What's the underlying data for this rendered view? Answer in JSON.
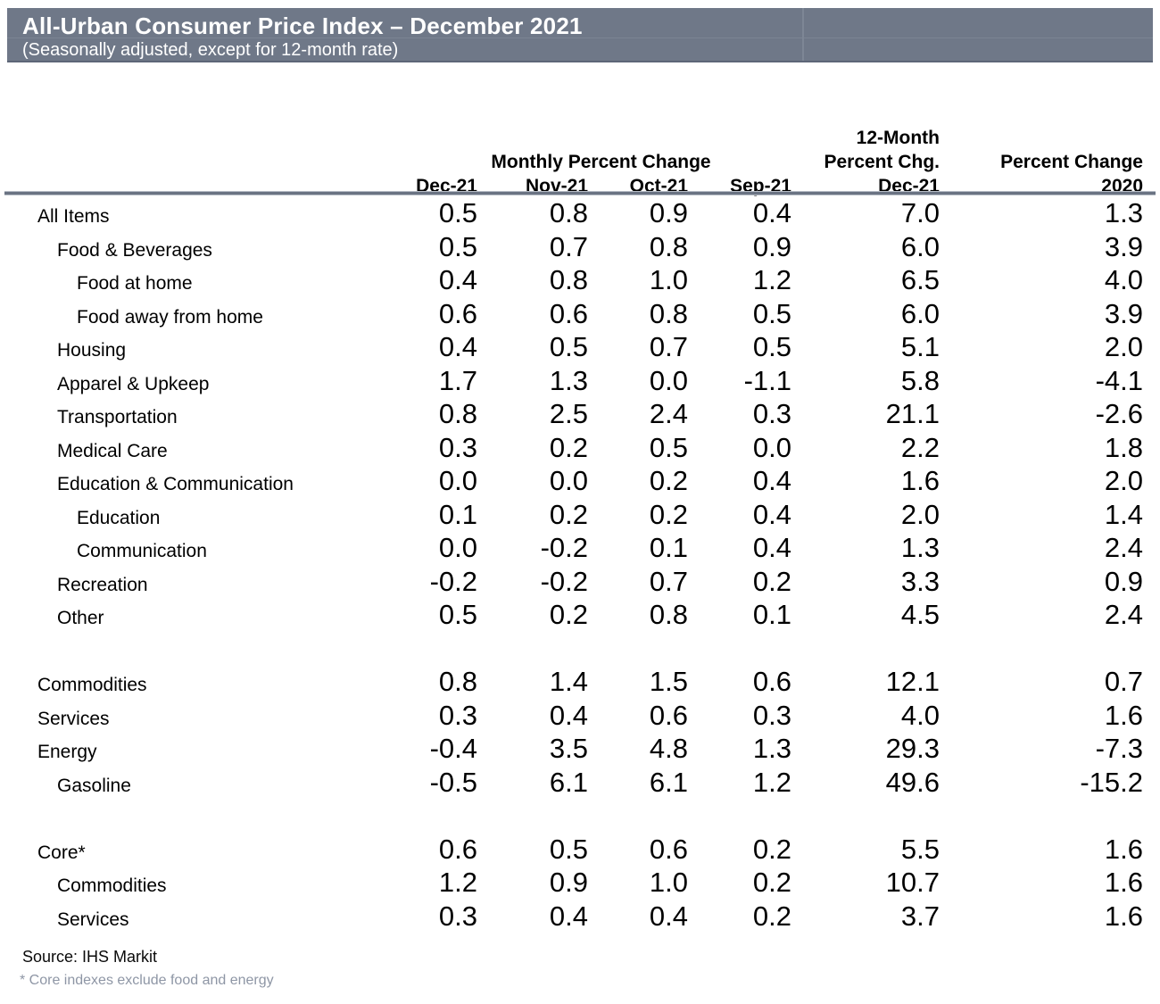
{
  "header": {
    "title": "All-Urban Consumer Price Index – December 2021",
    "subtitle": "(Seasonally adjusted, except for 12-month rate)",
    "bar_color": "#6f7888",
    "text_color": "#ffffff"
  },
  "table": {
    "group_monthly": "Monthly Percent Change",
    "group_12month_line1": "12-Month",
    "group_12month_line2": "Percent Chg.",
    "group_percent_change": "Percent Change",
    "columns": [
      "Dec-21",
      "Nov-21",
      "Oct-21",
      "Sep-21",
      "Dec-21",
      "2020"
    ],
    "column_keys": [
      "dec21-monthly",
      "nov21-monthly",
      "oct21-monthly",
      "sep21-monthly",
      "dec21-12month",
      "2020-percent-change"
    ],
    "rows": [
      {
        "label": "All Items",
        "indent": 1,
        "values": [
          "0.5",
          "0.8",
          "0.9",
          "0.4",
          "7.0",
          "1.3"
        ]
      },
      {
        "label": "Food & Beverages",
        "indent": 2,
        "values": [
          "0.5",
          "0.7",
          "0.8",
          "0.9",
          "6.0",
          "3.9"
        ]
      },
      {
        "label": "Food at home",
        "indent": 3,
        "values": [
          "0.4",
          "0.8",
          "1.0",
          "1.2",
          "6.5",
          "4.0"
        ]
      },
      {
        "label": "Food away from home",
        "indent": 3,
        "values": [
          "0.6",
          "0.6",
          "0.8",
          "0.5",
          "6.0",
          "3.9"
        ]
      },
      {
        "label": "Housing",
        "indent": 2,
        "values": [
          "0.4",
          "0.5",
          "0.7",
          "0.5",
          "5.1",
          "2.0"
        ]
      },
      {
        "label": "Apparel & Upkeep",
        "indent": 2,
        "values": [
          "1.7",
          "1.3",
          "0.0",
          "-1.1",
          "5.8",
          "-4.1"
        ]
      },
      {
        "label": "Transportation",
        "indent": 2,
        "values": [
          "0.8",
          "2.5",
          "2.4",
          "0.3",
          "21.1",
          "-2.6"
        ]
      },
      {
        "label": "Medical Care",
        "indent": 2,
        "values": [
          "0.3",
          "0.2",
          "0.5",
          "0.0",
          "2.2",
          "1.8"
        ]
      },
      {
        "label": "Education & Communication",
        "indent": 2,
        "values": [
          "0.0",
          "0.0",
          "0.2",
          "0.4",
          "1.6",
          "2.0"
        ]
      },
      {
        "label": "Education",
        "indent": 3,
        "values": [
          "0.1",
          "0.2",
          "0.2",
          "0.4",
          "2.0",
          "1.4"
        ]
      },
      {
        "label": "Communication",
        "indent": 3,
        "values": [
          "0.0",
          "-0.2",
          "0.1",
          "0.4",
          "1.3",
          "2.4"
        ]
      },
      {
        "label": "Recreation",
        "indent": 2,
        "values": [
          "-0.2",
          "-0.2",
          "0.7",
          "0.2",
          "3.3",
          "0.9"
        ]
      },
      {
        "label": "Other",
        "indent": 2,
        "values": [
          "0.5",
          "0.2",
          "0.8",
          "0.1",
          "4.5",
          "2.4"
        ]
      },
      {
        "spacer": true
      },
      {
        "label": "Commodities",
        "indent": 1,
        "values": [
          "0.8",
          "1.4",
          "1.5",
          "0.6",
          "12.1",
          "0.7"
        ]
      },
      {
        "label": "Services",
        "indent": 1,
        "values": [
          "0.3",
          "0.4",
          "0.6",
          "0.3",
          "4.0",
          "1.6"
        ]
      },
      {
        "label": "Energy",
        "indent": 1,
        "values": [
          "-0.4",
          "3.5",
          "4.8",
          "1.3",
          "29.3",
          "-7.3"
        ]
      },
      {
        "label": "Gasoline",
        "indent": 2,
        "values": [
          "-0.5",
          "6.1",
          "6.1",
          "1.2",
          "49.6",
          "-15.2"
        ]
      },
      {
        "spacer": true
      },
      {
        "label": "Core*",
        "indent": 1,
        "values": [
          "0.6",
          "0.5",
          "0.6",
          "0.2",
          "5.5",
          "1.6"
        ]
      },
      {
        "label": "Commodities",
        "indent": 2,
        "values": [
          "1.2",
          "0.9",
          "1.0",
          "0.2",
          "10.7",
          "1.6"
        ]
      },
      {
        "label": "Services",
        "indent": 2,
        "values": [
          "0.3",
          "0.4",
          "0.4",
          "0.2",
          "3.7",
          "1.6"
        ]
      }
    ]
  },
  "footer": {
    "source": "Source: IHS Markit",
    "footnote": "* Core indexes exclude food and energy",
    "footnote_color": "#8e96a5"
  }
}
